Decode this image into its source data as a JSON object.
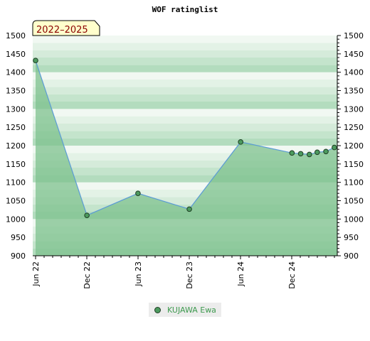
{
  "chart_data": {
    "type": "area",
    "title": "WOF ratinglist",
    "period_label": "2022–2025",
    "x_tick_labels": [
      "Jun 22",
      "Dec 22",
      "Jun 23",
      "Dec 23",
      "Jun 24",
      "Dec 24"
    ],
    "ylim": [
      900,
      1500
    ],
    "y_ticks": [
      900,
      950,
      1000,
      1050,
      1100,
      1150,
      1200,
      1250,
      1300,
      1350,
      1400,
      1450,
      1500
    ],
    "series": [
      {
        "name": "KUJAWA Ewa",
        "x": [
          "2022-06-01",
          "2022-12-01",
          "2023-06-01",
          "2023-12-01",
          "2024-06-01",
          "2024-12-01",
          "2025-01-01",
          "2025-02-01",
          "2025-03-01",
          "2025-04-01",
          "2025-05-01"
        ],
        "values": [
          1432,
          1010,
          1070,
          1027,
          1210,
          1180,
          1178,
          1176,
          1182,
          1184,
          1195
        ]
      }
    ],
    "legend_position": "bottom",
    "grid": true
  },
  "colors": {
    "line": "#5b9bd5",
    "marker": "#4c9a5e",
    "area": "#7dc28d",
    "legend_text": "#3e9a4f",
    "period_bg": "#ffffcc"
  }
}
